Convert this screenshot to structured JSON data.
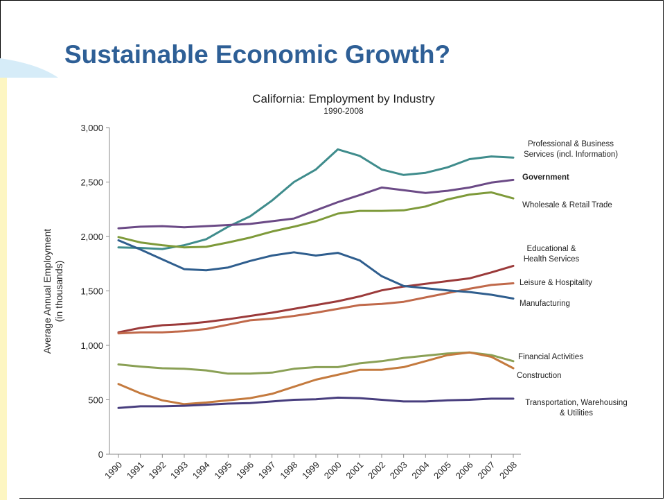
{
  "slide": {
    "title": "Sustainable Economic Growth?"
  },
  "chart_data": {
    "type": "line",
    "title": "California: Employment by Industry",
    "subtitle": "1990-2008",
    "ylabel": "Average Annual Employment",
    "ylabel_sub": "(in thousands)",
    "xlabel": "",
    "ylim": [
      0,
      3000
    ],
    "y_ticks": [
      0,
      500,
      1000,
      1500,
      2000,
      2500,
      3000
    ],
    "y_tick_labels": [
      "0",
      "500",
      "1,000",
      "1,500",
      "2,000",
      "2,500",
      "3,000"
    ],
    "x": [
      "1990",
      "1991",
      "1992",
      "1993",
      "1994",
      "1995",
      "1996",
      "1997",
      "1998",
      "1999",
      "2000",
      "2001",
      "2002",
      "2003",
      "2004",
      "2005",
      "2006",
      "2007",
      "2008"
    ],
    "grid": false,
    "legend": "inline labels at right end of lines",
    "series": [
      {
        "key": "prof",
        "label_lines": [
          "Professional & Business",
          "Services (incl. Information)"
        ],
        "color": "#3f8c8c",
        "bold": false,
        "values": [
          1900,
          1895,
          1885,
          1920,
          1975,
          2090,
          2185,
          2330,
          2500,
          2615,
          2800,
          2740,
          2615,
          2565,
          2585,
          2635,
          2710,
          2735,
          2725
        ]
      },
      {
        "key": "gov",
        "label_lines": [
          "Government"
        ],
        "color": "#6b4a86",
        "bold": true,
        "values": [
          2075,
          2090,
          2095,
          2085,
          2095,
          2105,
          2115,
          2140,
          2165,
          2240,
          2315,
          2380,
          2450,
          2425,
          2400,
          2420,
          2450,
          2495,
          2520
        ]
      },
      {
        "key": "trade",
        "label_lines": [
          "Wholesale & Retail Trade"
        ],
        "color": "#7e9a3a",
        "bold": false,
        "values": [
          1995,
          1945,
          1920,
          1900,
          1905,
          1945,
          1990,
          2045,
          2090,
          2140,
          2210,
          2235,
          2235,
          2240,
          2275,
          2340,
          2385,
          2405,
          2350
        ]
      },
      {
        "key": "edu",
        "label_lines": [
          "Educational &",
          "Health Services"
        ],
        "color": "#9b3a3a",
        "bold": false,
        "values": [
          1120,
          1160,
          1185,
          1195,
          1215,
          1240,
          1270,
          1300,
          1335,
          1370,
          1405,
          1450,
          1505,
          1540,
          1565,
          1590,
          1615,
          1670,
          1730
        ]
      },
      {
        "key": "leisure",
        "label_lines": [
          "Leisure & Hospitality"
        ],
        "color": "#c0694a",
        "bold": false,
        "values": [
          1110,
          1120,
          1120,
          1130,
          1150,
          1190,
          1230,
          1245,
          1270,
          1300,
          1335,
          1370,
          1380,
          1400,
          1440,
          1480,
          1520,
          1555,
          1570
        ]
      },
      {
        "key": "mfg",
        "label_lines": [
          "Manufacturing"
        ],
        "color": "#2f5e8e",
        "bold": false,
        "values": [
          1965,
          1880,
          1790,
          1700,
          1690,
          1715,
          1775,
          1825,
          1855,
          1825,
          1850,
          1780,
          1635,
          1545,
          1525,
          1505,
          1490,
          1465,
          1430
        ]
      },
      {
        "key": "fin",
        "label_lines": [
          "Financial Activities"
        ],
        "color": "#8aa055",
        "bold": false,
        "values": [
          825,
          805,
          790,
          785,
          770,
          740,
          740,
          750,
          785,
          800,
          800,
          835,
          855,
          885,
          905,
          925,
          935,
          910,
          855
        ]
      },
      {
        "key": "const",
        "label_lines": [
          "Construction"
        ],
        "color": "#c47a3e",
        "bold": false,
        "values": [
          645,
          560,
          495,
          460,
          475,
          495,
          515,
          555,
          620,
          685,
          730,
          775,
          775,
          800,
          855,
          910,
          935,
          895,
          790
        ]
      },
      {
        "key": "trans",
        "label_lines": [
          "Transportation, Warehousing",
          "& Utilities"
        ],
        "color": "#483e7e",
        "bold": false,
        "values": [
          425,
          440,
          440,
          445,
          455,
          465,
          470,
          485,
          500,
          505,
          520,
          515,
          500,
          485,
          485,
          495,
          500,
          510,
          510
        ]
      }
    ]
  }
}
